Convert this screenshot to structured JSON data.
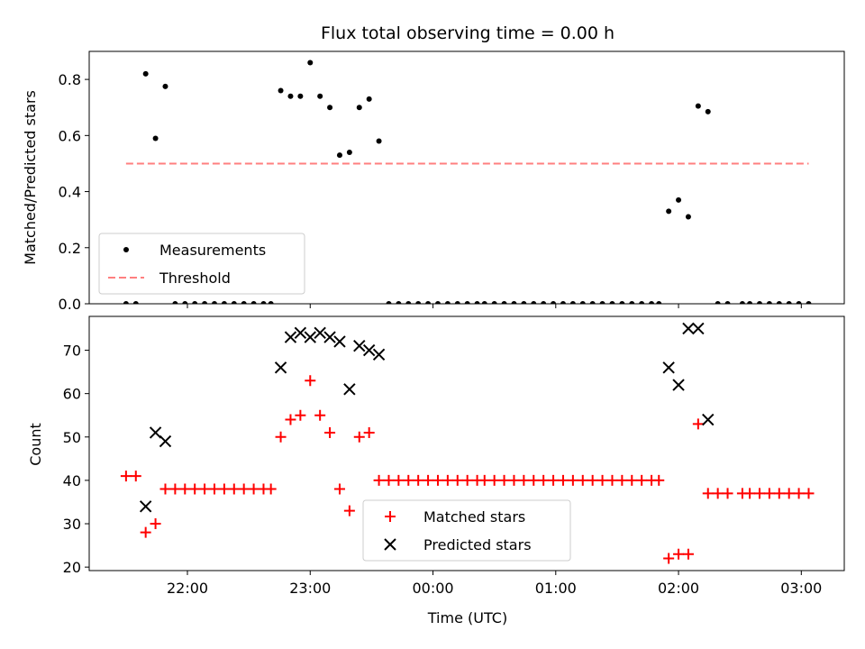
{
  "chart_data": [
    {
      "type": "scatter",
      "title": "Flux total observing time = 0.00 h",
      "ylabel": "Matched/Predicted stars",
      "ylim": [
        0,
        0.9
      ],
      "yticks": [
        0.0,
        0.2,
        0.4,
        0.6,
        0.8
      ],
      "ytick_labels": [
        "0.0",
        "0.2",
        "0.4",
        "0.6",
        "0.8"
      ],
      "xlim": [
        21.2,
        27.35
      ],
      "xticks": [
        22,
        23,
        24,
        25,
        26,
        27
      ],
      "legend": {
        "placement": "lower-left",
        "entries": [
          {
            "label": "Measurements",
            "marker": "dot",
            "color": "#000000"
          },
          {
            "label": "Threshold",
            "marker": "dashed-line",
            "color": "#ff7f7f"
          }
        ]
      },
      "series": [
        {
          "name": "Measurements",
          "color": "#000000",
          "marker": "dot",
          "x": [
            21.5,
            21.58,
            21.66,
            21.74,
            21.82,
            21.9,
            21.98,
            22.06,
            22.14,
            22.22,
            22.3,
            22.38,
            22.46,
            22.54,
            22.62,
            22.68,
            22.76,
            22.84,
            22.92,
            23.0,
            23.08,
            23.16,
            23.24,
            23.32,
            23.4,
            23.48,
            23.56,
            23.64,
            23.72,
            23.8,
            23.88,
            23.96,
            24.04,
            24.12,
            24.2,
            24.28,
            24.36,
            24.42,
            24.5,
            24.58,
            24.66,
            24.74,
            24.82,
            24.9,
            24.98,
            25.06,
            25.14,
            25.22,
            25.3,
            25.38,
            25.46,
            25.54,
            25.62,
            25.7,
            25.78,
            25.84,
            25.92,
            26.0,
            26.08,
            26.16,
            26.24,
            26.32,
            26.4,
            26.52,
            26.58,
            26.66,
            26.74,
            26.82,
            26.9,
            26.98,
            27.06
          ],
          "y": [
            0.0,
            0.0,
            0.82,
            0.59,
            0.775,
            0.0,
            0.0,
            0.0,
            0.0,
            0.0,
            0.0,
            0.0,
            0.0,
            0.0,
            0.0,
            0.0,
            0.76,
            0.74,
            0.74,
            0.86,
            0.74,
            0.7,
            0.53,
            0.54,
            0.7,
            0.73,
            0.58,
            0.0,
            0.0,
            0.0,
            0.0,
            0.0,
            0.0,
            0.0,
            0.0,
            0.0,
            0.0,
            0.0,
            0.0,
            0.0,
            0.0,
            0.0,
            0.0,
            0.0,
            0.0,
            0.0,
            0.0,
            0.0,
            0.0,
            0.0,
            0.0,
            0.0,
            0.0,
            0.0,
            0.0,
            0.0,
            0.33,
            0.37,
            0.31,
            0.705,
            0.685,
            0.0,
            0.0,
            0.0,
            0.0,
            0.0,
            0.0,
            0.0,
            0.0,
            0.0,
            0.0
          ]
        },
        {
          "name": "Threshold",
          "color": "#ff7f7f",
          "style": "dashed",
          "x": [
            21.5,
            27.06
          ],
          "y": [
            0.5,
            0.5
          ]
        }
      ]
    },
    {
      "type": "scatter",
      "xlabel": "Time (UTC)",
      "ylabel": "Count",
      "ylim": [
        19.2,
        77.8
      ],
      "yticks": [
        20,
        30,
        40,
        50,
        60,
        70
      ],
      "ytick_labels": [
        "20",
        "30",
        "40",
        "50",
        "60",
        "70"
      ],
      "xlim": [
        21.2,
        27.35
      ],
      "xticks": [
        22,
        23,
        24,
        25,
        26,
        27
      ],
      "xtick_labels": [
        "22:00",
        "23:00",
        "00:00",
        "01:00",
        "02:00",
        "03:00"
      ],
      "legend": {
        "placement": "lower-center",
        "entries": [
          {
            "label": "Matched stars",
            "marker": "plus",
            "color": "#ff0000"
          },
          {
            "label": "Predicted stars",
            "marker": "x",
            "color": "#000000"
          }
        ]
      },
      "series": [
        {
          "name": "Matched stars",
          "color": "#ff0000",
          "marker": "plus",
          "x": [
            21.5,
            21.58,
            21.66,
            21.74,
            21.82,
            21.9,
            21.98,
            22.06,
            22.14,
            22.22,
            22.3,
            22.38,
            22.46,
            22.54,
            22.62,
            22.68,
            22.76,
            22.84,
            22.92,
            23.0,
            23.08,
            23.16,
            23.24,
            23.32,
            23.4,
            23.48,
            23.56,
            23.64,
            23.72,
            23.8,
            23.88,
            23.96,
            24.04,
            24.12,
            24.2,
            24.28,
            24.36,
            24.42,
            24.5,
            24.58,
            24.66,
            24.74,
            24.82,
            24.9,
            24.98,
            25.06,
            25.14,
            25.22,
            25.3,
            25.38,
            25.46,
            25.54,
            25.62,
            25.7,
            25.78,
            25.84,
            25.92,
            26.0,
            26.08,
            26.16,
            26.24,
            26.32,
            26.4,
            26.52,
            26.58,
            26.66,
            26.74,
            26.82,
            26.9,
            26.98,
            27.06
          ],
          "y": [
            41,
            41,
            28,
            30,
            38,
            38,
            38,
            38,
            38,
            38,
            38,
            38,
            38,
            38,
            38,
            38,
            50,
            54,
            55,
            63,
            55,
            51,
            38,
            33,
            50,
            51,
            40,
            40,
            40,
            40,
            40,
            40,
            40,
            40,
            40,
            40,
            40,
            40,
            40,
            40,
            40,
            40,
            40,
            40,
            40,
            40,
            40,
            40,
            40,
            40,
            40,
            40,
            40,
            40,
            40,
            40,
            22,
            23,
            23,
            53,
            37,
            37,
            37,
            37,
            37,
            37,
            37,
            37,
            37,
            37,
            37
          ]
        },
        {
          "name": "Predicted stars",
          "color": "#000000",
          "marker": "x",
          "x": [
            21.66,
            21.74,
            21.82,
            22.76,
            22.84,
            22.92,
            23.0,
            23.08,
            23.16,
            23.24,
            23.32,
            23.4,
            23.48,
            23.56,
            25.92,
            26.0,
            26.08,
            26.16,
            26.24
          ],
          "y": [
            34,
            51,
            49,
            66,
            73,
            74,
            73,
            74,
            73,
            72,
            61,
            71,
            70,
            69,
            66,
            62,
            75,
            75,
            54
          ]
        }
      ]
    }
  ]
}
